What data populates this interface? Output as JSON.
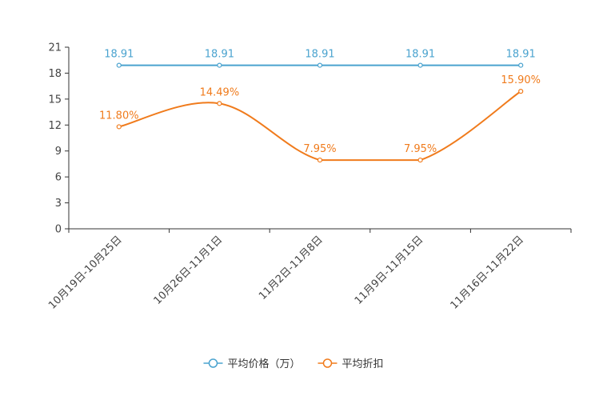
{
  "chart_data": {
    "type": "line",
    "categories": [
      "10月19日-10月25日",
      "10月26日-11月1日",
      "11月2日-11月8日",
      "11月9日-11月15日",
      "11月16日-11月22日"
    ],
    "ylim": [
      0,
      21
    ],
    "yticks": [
      0,
      3,
      6,
      9,
      12,
      15,
      18,
      21
    ],
    "series": [
      {
        "name": "平均价格（万）",
        "color": "#4aa3cf",
        "values": [
          18.91,
          18.91,
          18.91,
          18.91,
          18.91
        ],
        "labels": [
          "18.91",
          "18.91",
          "18.91",
          "18.91",
          "18.91"
        ],
        "smooth": false
      },
      {
        "name": "平均折扣",
        "color": "#f07b1c",
        "values": [
          11.8,
          14.49,
          7.95,
          7.95,
          15.9
        ],
        "labels": [
          "11.80%",
          "14.49%",
          "7.95%",
          "7.95%",
          "15.90%"
        ],
        "smooth": true
      }
    ],
    "legend_position": "bottom-center"
  }
}
